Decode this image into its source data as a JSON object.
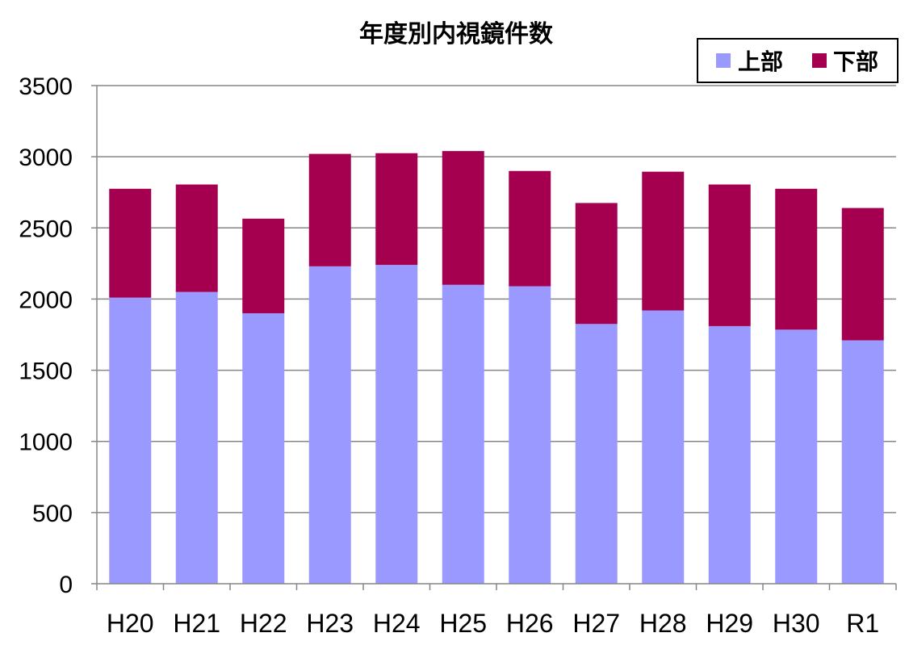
{
  "chart_data": {
    "type": "bar",
    "stacked": true,
    "title": "年度別内視鏡件数",
    "categories": [
      "H20",
      "H21",
      "H22",
      "H23",
      "H24",
      "H25",
      "H26",
      "H27",
      "H28",
      "H29",
      "H30",
      "R1"
    ],
    "series": [
      {
        "name": "上部",
        "color": "#9999ff",
        "values": [
          2010,
          2050,
          1900,
          2230,
          2240,
          2100,
          2090,
          1825,
          1920,
          1810,
          1785,
          1710
        ]
      },
      {
        "name": "下部",
        "color": "#a50050",
        "values": [
          765,
          755,
          665,
          790,
          785,
          940,
          810,
          850,
          975,
          995,
          990,
          930
        ]
      }
    ],
    "ylim": [
      0,
      3500
    ],
    "yticks": [
      "0",
      "500",
      "1000",
      "1500",
      "2000",
      "2500",
      "3000",
      "3500"
    ],
    "xlabel": "",
    "ylabel": "",
    "grid": true,
    "legend_position": "top-right"
  }
}
